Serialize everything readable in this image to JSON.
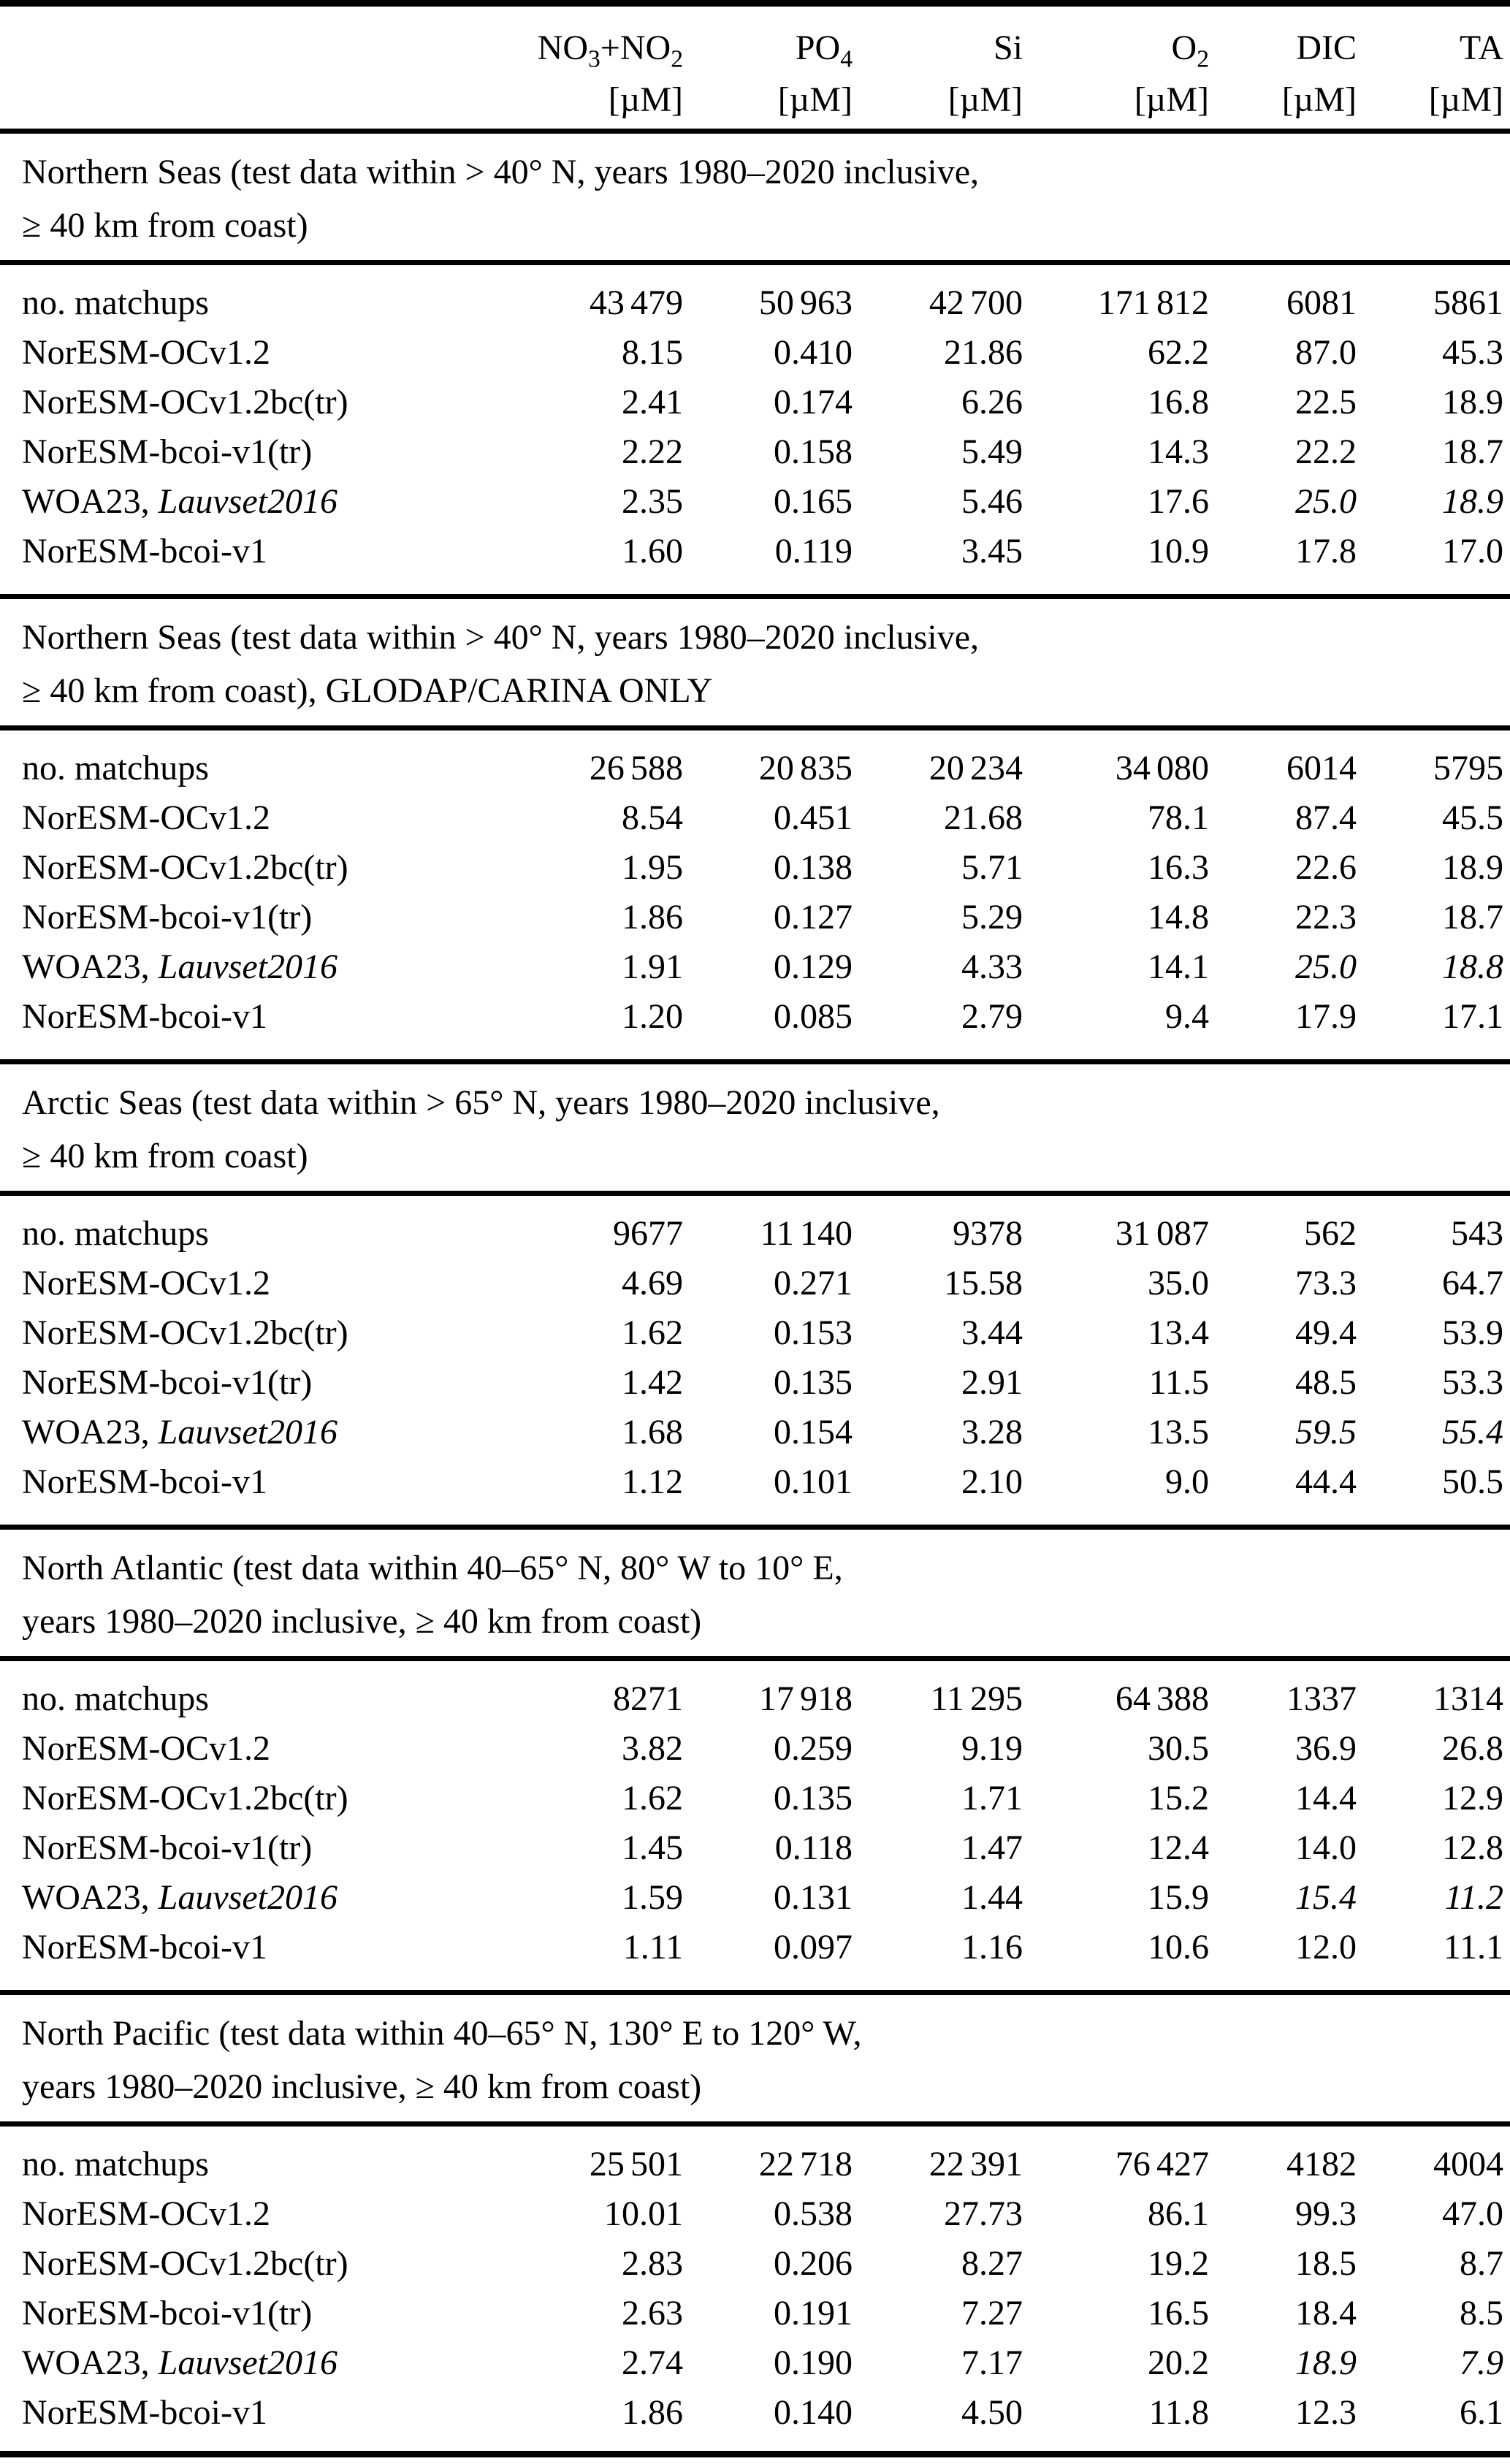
{
  "table": {
    "columns": [
      {
        "key": "no3-no2",
        "label": "NO3+NO2",
        "parts": [
          {
            "text": "NO"
          },
          {
            "sub": "3"
          },
          {
            "text": "+NO"
          },
          {
            "sub": "2"
          }
        ],
        "unit": "[µM]"
      },
      {
        "key": "po4",
        "label": "PO4",
        "parts": [
          {
            "text": "PO"
          },
          {
            "sub": "4"
          }
        ],
        "unit": "[µM]"
      },
      {
        "key": "si",
        "label": "Si",
        "parts": [
          {
            "text": "Si"
          }
        ],
        "unit": "[µM]"
      },
      {
        "key": "o2",
        "label": "O2",
        "parts": [
          {
            "text": "O"
          },
          {
            "sub": "2"
          }
        ],
        "unit": "[µM]"
      },
      {
        "key": "dic",
        "label": "DIC",
        "parts": [
          {
            "text": "DIC"
          }
        ],
        "unit": "[µM]"
      },
      {
        "key": "ta",
        "label": "TA",
        "parts": [
          {
            "text": "TA"
          }
        ],
        "unit": "[µM]"
      }
    ],
    "sections": [
      {
        "title_lines": [
          "Northern Seas (test data within > 40° N, years 1980–2020 inclusive,",
          "≥ 40 km from coast)"
        ],
        "rows": [
          {
            "label": "no. matchups",
            "values": [
              "43 479",
              "50 963",
              "42 700",
              "171 812",
              "6081",
              "5861"
            ]
          },
          {
            "label": "NorESM-OCv1.2",
            "values": [
              "8.15",
              "0.410",
              "21.86",
              "62.2",
              "87.0",
              "45.3"
            ]
          },
          {
            "label": "NorESM-OCv1.2bc(tr)",
            "values": [
              "2.41",
              "0.174",
              "6.26",
              "16.8",
              "22.5",
              "18.9"
            ]
          },
          {
            "label": "NorESM-bcoi-v1(tr)",
            "values": [
              "2.22",
              "0.158",
              "5.49",
              "14.3",
              "22.2",
              "18.7"
            ]
          },
          {
            "label": "WOA23, ",
            "label_italic": "Lauvset2016",
            "values": [
              "2.35",
              "0.165",
              "5.46",
              "17.6",
              "25.0",
              "18.9"
            ],
            "italic_values": [
              4,
              5
            ]
          },
          {
            "label": "NorESM-bcoi-v1",
            "values": [
              "1.60",
              "0.119",
              "3.45",
              "10.9",
              "17.8",
              "17.0"
            ]
          }
        ]
      },
      {
        "title_lines": [
          "Northern Seas (test data within > 40° N, years 1980–2020 inclusive,",
          "≥ 40 km from coast), GLODAP/CARINA ONLY"
        ],
        "rows": [
          {
            "label": "no. matchups",
            "values": [
              "26 588",
              "20 835",
              "20 234",
              "34 080",
              "6014",
              "5795"
            ]
          },
          {
            "label": "NorESM-OCv1.2",
            "values": [
              "8.54",
              "0.451",
              "21.68",
              "78.1",
              "87.4",
              "45.5"
            ]
          },
          {
            "label": "NorESM-OCv1.2bc(tr)",
            "values": [
              "1.95",
              "0.138",
              "5.71",
              "16.3",
              "22.6",
              "18.9"
            ]
          },
          {
            "label": "NorESM-bcoi-v1(tr)",
            "values": [
              "1.86",
              "0.127",
              "5.29",
              "14.8",
              "22.3",
              "18.7"
            ]
          },
          {
            "label": "WOA23, ",
            "label_italic": "Lauvset2016",
            "values": [
              "1.91",
              "0.129",
              "4.33",
              "14.1",
              "25.0",
              "18.8"
            ],
            "italic_values": [
              4,
              5
            ]
          },
          {
            "label": "NorESM-bcoi-v1",
            "values": [
              "1.20",
              "0.085",
              "2.79",
              "9.4",
              "17.9",
              "17.1"
            ]
          }
        ]
      },
      {
        "title_lines": [
          "Arctic Seas (test data within > 65° N, years 1980–2020 inclusive,",
          "≥ 40 km from coast)"
        ],
        "rows": [
          {
            "label": "no. matchups",
            "values": [
              "9677",
              "11 140",
              "9378",
              "31 087",
              "562",
              "543"
            ]
          },
          {
            "label": "NorESM-OCv1.2",
            "values": [
              "4.69",
              "0.271",
              "15.58",
              "35.0",
              "73.3",
              "64.7"
            ]
          },
          {
            "label": "NorESM-OCv1.2bc(tr)",
            "values": [
              "1.62",
              "0.153",
              "3.44",
              "13.4",
              "49.4",
              "53.9"
            ]
          },
          {
            "label": "NorESM-bcoi-v1(tr)",
            "values": [
              "1.42",
              "0.135",
              "2.91",
              "11.5",
              "48.5",
              "53.3"
            ]
          },
          {
            "label": "WOA23, ",
            "label_italic": "Lauvset2016",
            "values": [
              "1.68",
              "0.154",
              "3.28",
              "13.5",
              "59.5",
              "55.4"
            ],
            "italic_values": [
              4,
              5
            ]
          },
          {
            "label": "NorESM-bcoi-v1",
            "values": [
              "1.12",
              "0.101",
              "2.10",
              "9.0",
              "44.4",
              "50.5"
            ]
          }
        ]
      },
      {
        "title_lines": [
          "North Atlantic (test data within 40–65° N, 80° W to 10° E,",
          "years 1980–2020 inclusive, ≥ 40 km from coast)"
        ],
        "rows": [
          {
            "label": "no. matchups",
            "values": [
              "8271",
              "17 918",
              "11 295",
              "64 388",
              "1337",
              "1314"
            ]
          },
          {
            "label": "NorESM-OCv1.2",
            "values": [
              "3.82",
              "0.259",
              "9.19",
              "30.5",
              "36.9",
              "26.8"
            ]
          },
          {
            "label": "NorESM-OCv1.2bc(tr)",
            "values": [
              "1.62",
              "0.135",
              "1.71",
              "15.2",
              "14.4",
              "12.9"
            ]
          },
          {
            "label": "NorESM-bcoi-v1(tr)",
            "values": [
              "1.45",
              "0.118",
              "1.47",
              "12.4",
              "14.0",
              "12.8"
            ]
          },
          {
            "label": "WOA23, ",
            "label_italic": "Lauvset2016",
            "values": [
              "1.59",
              "0.131",
              "1.44",
              "15.9",
              "15.4",
              "11.2"
            ],
            "italic_values": [
              4,
              5
            ]
          },
          {
            "label": "NorESM-bcoi-v1",
            "values": [
              "1.11",
              "0.097",
              "1.16",
              "10.6",
              "12.0",
              "11.1"
            ]
          }
        ]
      },
      {
        "title_lines": [
          "North Pacific (test data within 40–65° N, 130° E to 120° W,",
          "years 1980–2020 inclusive, ≥ 40 km from coast)"
        ],
        "rows": [
          {
            "label": "no. matchups",
            "values": [
              "25 501",
              "22 718",
              "22 391",
              "76 427",
              "4182",
              "4004"
            ]
          },
          {
            "label": "NorESM-OCv1.2",
            "values": [
              "10.01",
              "0.538",
              "27.73",
              "86.1",
              "99.3",
              "47.0"
            ]
          },
          {
            "label": "NorESM-OCv1.2bc(tr)",
            "values": [
              "2.83",
              "0.206",
              "8.27",
              "19.2",
              "18.5",
              "8.7"
            ]
          },
          {
            "label": "NorESM-bcoi-v1(tr)",
            "values": [
              "2.63",
              "0.191",
              "7.27",
              "16.5",
              "18.4",
              "8.5"
            ]
          },
          {
            "label": "WOA23, ",
            "label_italic": "Lauvset2016",
            "values": [
              "2.74",
              "0.190",
              "7.17",
              "20.2",
              "18.9",
              "7.9"
            ],
            "italic_values": [
              4,
              5
            ]
          },
          {
            "label": "NorESM-bcoi-v1",
            "values": [
              "1.86",
              "0.140",
              "4.50",
              "11.8",
              "12.3",
              "6.1"
            ]
          }
        ]
      }
    ]
  }
}
